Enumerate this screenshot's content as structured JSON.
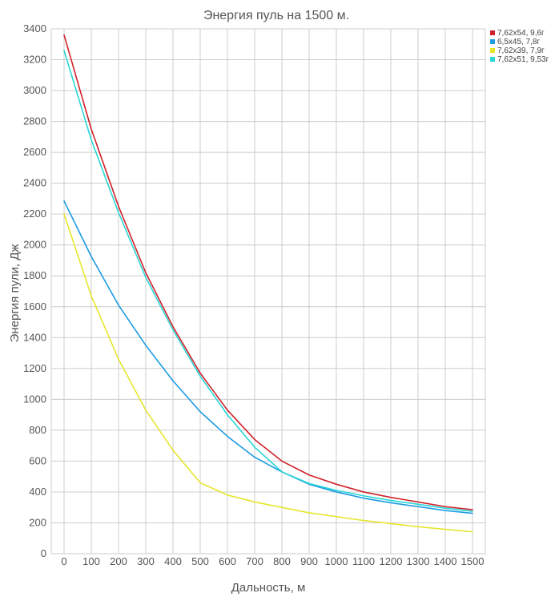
{
  "chart_data": {
    "type": "line",
    "title": "Энергия пуль на 1500 м.",
    "xlabel": "Дальность, м",
    "ylabel": "Энергия пули, Дж",
    "x": [
      0,
      100,
      200,
      300,
      400,
      500,
      600,
      700,
      800,
      900,
      1000,
      1100,
      1200,
      1300,
      1400,
      1500
    ],
    "xlim": [
      0,
      1500
    ],
    "ylim": [
      0,
      3400
    ],
    "yticks": [
      0,
      200,
      400,
      600,
      800,
      1000,
      1200,
      1400,
      1600,
      1800,
      2000,
      2200,
      2400,
      2600,
      2800,
      3000,
      3200,
      3400
    ],
    "grid": true,
    "legend": "top-right",
    "series": [
      {
        "name": "7,62x54, 9,6г",
        "color": "#d0212a",
        "values": [
          3360,
          2750,
          2250,
          1820,
          1470,
          1170,
          930,
          740,
          600,
          510,
          450,
          400,
          365,
          335,
          305,
          285
        ]
      },
      {
        "name": "6,5x45, 7,8г",
        "color": "#1a9be3",
        "values": [
          2285,
          1925,
          1610,
          1350,
          1120,
          920,
          760,
          625,
          530,
          450,
          400,
          360,
          330,
          305,
          280,
          262
        ]
      },
      {
        "name": "7,62x39, 7,9г",
        "color": "#e6e62e",
        "values": [
          2200,
          1670,
          1260,
          930,
          670,
          460,
          380,
          335,
          300,
          265,
          240,
          215,
          195,
          175,
          158,
          142
        ]
      },
      {
        "name": "7,62x51, 9,53г",
        "color": "#2ad6d6",
        "values": [
          3260,
          2680,
          2210,
          1790,
          1450,
          1150,
          900,
          690,
          530,
          455,
          410,
          375,
          345,
          320,
          295,
          275
        ]
      }
    ]
  }
}
